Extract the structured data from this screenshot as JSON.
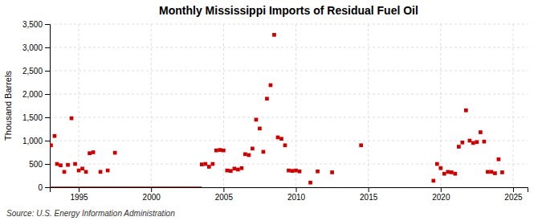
{
  "chart_data": {
    "type": "scatter",
    "title": "Monthly Mississippi Imports of Residual Fuel Oil",
    "ylabel": "Thousand Barrels",
    "source": "Source: U.S. Energy Information Administration",
    "xlim": [
      1993.0,
      2026.0
    ],
    "xticks": [
      1995,
      2000,
      2005,
      2010,
      2015,
      2020,
      2025
    ],
    "ylim": [
      0,
      3500
    ],
    "yticks": [
      0,
      500,
      {
        "value": 1000,
        "label": "1,000"
      },
      {
        "value": 1500,
        "label": "1,500"
      },
      {
        "value": 2000,
        "label": "2,000"
      },
      {
        "value": 2500,
        "label": "2,500"
      },
      {
        "value": 3000,
        "label": "3,000"
      },
      {
        "value": 3500,
        "label": "3,500"
      }
    ],
    "grid": true,
    "series": [
      {
        "type": "line",
        "color": "#8b0000",
        "x": [
          1993.0,
          2003.5
        ],
        "values": [
          0,
          0
        ]
      },
      {
        "type": "scatter",
        "color": "#cc0000",
        "marker": "square",
        "x": [
          1993.08,
          1993.33,
          1993.5,
          1993.75,
          1994.0,
          1994.25,
          1994.5,
          1994.75,
          1995.0,
          1995.25,
          1995.5,
          1995.75,
          1996.0,
          1996.5,
          1997.0,
          1997.5,
          2003.5,
          2003.75,
          2004.0,
          2004.25,
          2004.5,
          2004.75,
          2005.0,
          2005.25,
          2005.5,
          2005.75,
          2006.0,
          2006.25,
          2006.5,
          2006.75,
          2007.0,
          2007.25,
          2007.5,
          2007.75,
          2008.0,
          2008.25,
          2008.5,
          2008.75,
          2009.0,
          2009.25,
          2009.5,
          2009.75,
          2010.0,
          2010.25,
          2011.0,
          2011.5,
          2012.5,
          2014.5,
          2019.5,
          2019.75,
          2020.0,
          2020.25,
          2020.5,
          2020.75,
          2021.0,
          2021.25,
          2021.5,
          2021.75,
          2022.0,
          2022.25,
          2022.5,
          2022.75,
          2023.0,
          2023.25,
          2023.5,
          2023.75,
          2024.0,
          2024.25
        ],
        "values": [
          900,
          1100,
          500,
          470,
          330,
          480,
          1480,
          500,
          360,
          400,
          330,
          730,
          750,
          330,
          360,
          740,
          490,
          500,
          440,
          500,
          790,
          800,
          790,
          360,
          350,
          400,
          380,
          410,
          710,
          690,
          830,
          1450,
          1260,
          760,
          1900,
          2190,
          3270,
          1070,
          1040,
          900,
          360,
          350,
          360,
          340,
          100,
          340,
          320,
          900,
          140,
          500,
          410,
          290,
          330,
          320,
          290,
          870,
          960,
          1650,
          1000,
          950,
          970,
          1180,
          980,
          330,
          330,
          300,
          600,
          320
        ]
      }
    ]
  }
}
